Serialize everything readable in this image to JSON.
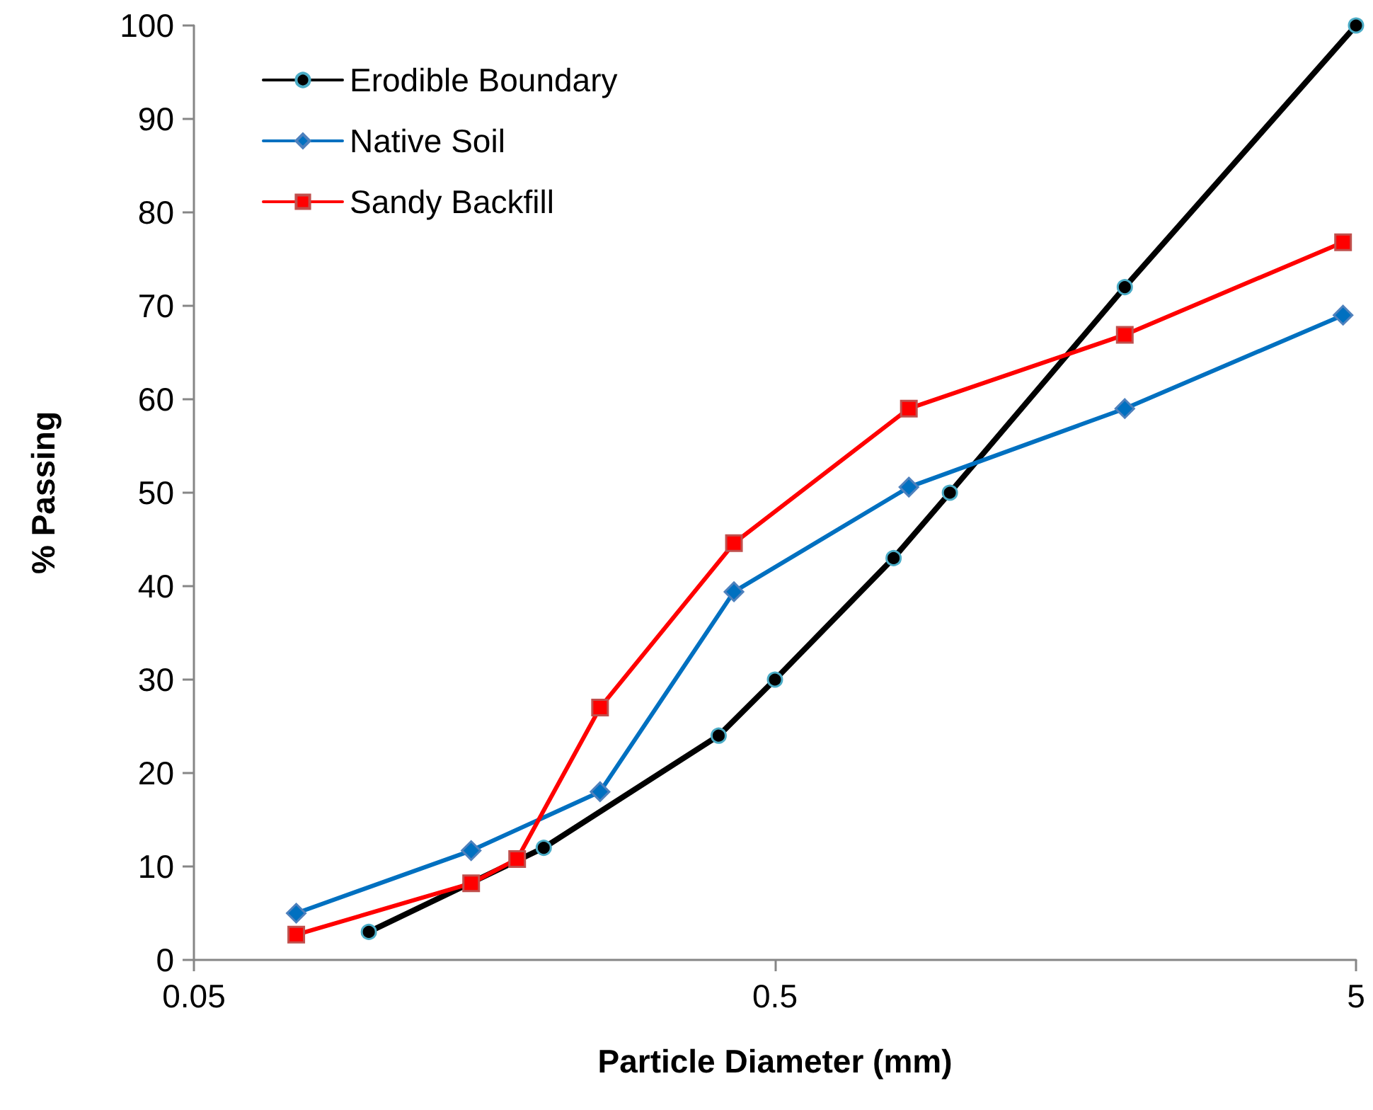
{
  "chart_data": {
    "type": "line",
    "xlabel": "Particle Diameter (mm)",
    "ylabel": "% Passing",
    "log": "x",
    "xlim": [
      0.05,
      5
    ],
    "xticks": [
      0.05,
      0.5,
      5
    ],
    "ylim": [
      0,
      100
    ],
    "yticks": [
      0,
      10,
      20,
      30,
      40,
      50,
      60,
      70,
      80,
      90,
      100
    ],
    "grid": false,
    "legend": "top left",
    "line_style": "solid",
    "series": [
      {
        "name": "Erodible Boundary",
        "color": "#000000",
        "marker": "circle",
        "x": [
          0.1,
          0.2,
          0.4,
          0.5,
          0.8,
          1.0,
          2.0,
          5
        ],
        "values": [
          3,
          12,
          24,
          30,
          43,
          50,
          72,
          100
        ]
      },
      {
        "name": "Native Soil",
        "color": "#0070c0",
        "marker": "diamond",
        "x": [
          0.075,
          0.15,
          0.25,
          0.425,
          0.85,
          2.0,
          4.75
        ],
        "values": [
          5,
          11.7,
          18,
          39.4,
          50.6,
          59,
          69
        ]
      },
      {
        "name": "Sandy Backfill",
        "color": "#ff0000",
        "marker": "square",
        "x": [
          0.075,
          0.15,
          0.18,
          0.25,
          0.425,
          0.85,
          2.0,
          4.75
        ],
        "values": [
          2.7,
          8.2,
          10.8,
          27,
          44.6,
          59,
          66.9,
          76.8
        ]
      }
    ]
  }
}
